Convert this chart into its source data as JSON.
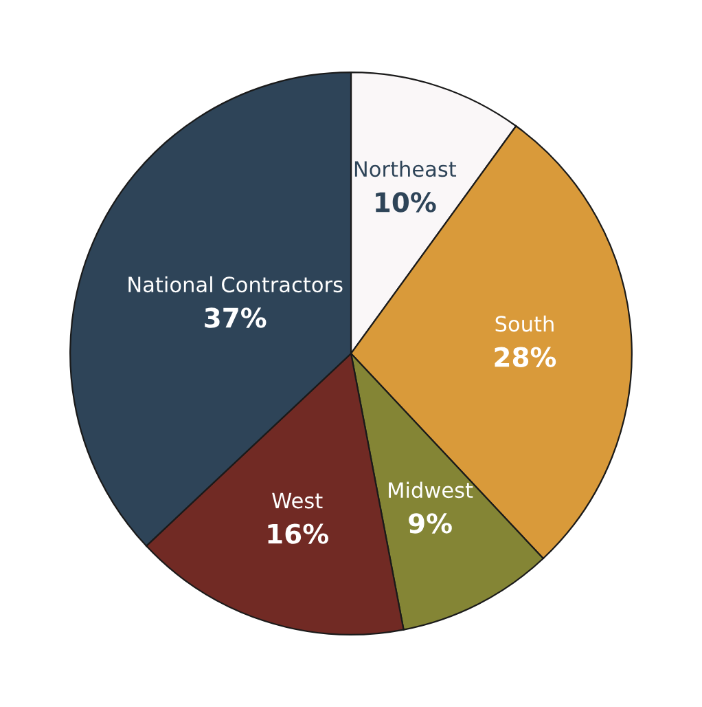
{
  "chart_data": {
    "type": "pie",
    "categories": [
      "Northeast",
      "South",
      "Midwest",
      "West",
      "National Contractors"
    ],
    "values": [
      10,
      28,
      9,
      16,
      37
    ],
    "value_labels": [
      "10%",
      "28%",
      "9%",
      "16%",
      "37%"
    ],
    "colors": [
      "#faf7f8",
      "#d99a3a",
      "#848535",
      "#712a24",
      "#2e4458"
    ]
  }
}
